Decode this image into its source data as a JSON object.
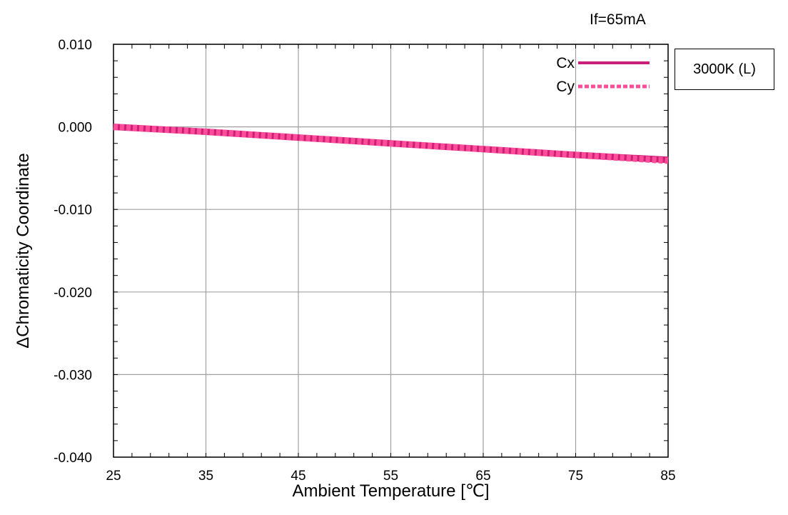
{
  "condition_label": "If=65mA",
  "tag_label": "3000K (L)",
  "colors": {
    "cx": "#cc1f78",
    "cy": "#ff4d9a",
    "grid": "#a0a0a0"
  },
  "chart_data": {
    "type": "line",
    "title": "",
    "xlabel": "Ambient Temperature [℃]",
    "ylabel": "ΔChromaticity Coordinate",
    "xlim": [
      25,
      85
    ],
    "ylim": [
      -0.04,
      0.01
    ],
    "xticks": [
      25,
      35,
      45,
      55,
      65,
      75,
      85
    ],
    "xtick_labels": [
      "25",
      "35",
      "45",
      "55",
      "65",
      "75",
      "85"
    ],
    "yticks": [
      0.01,
      0.0,
      -0.01,
      -0.02,
      -0.03,
      -0.04
    ],
    "ytick_labels": [
      "0.010",
      "0.000",
      "-0.010",
      "-0.020",
      "-0.030",
      "-0.040"
    ],
    "grid": true,
    "legend_position": "top-right",
    "series": [
      {
        "name": "Cx",
        "style": "solid",
        "x": [
          25,
          35,
          45,
          55,
          65,
          75,
          85
        ],
        "y": [
          0.0,
          -0.0006,
          -0.0013,
          -0.002,
          -0.0027,
          -0.0034,
          -0.004
        ]
      },
      {
        "name": "Cy",
        "style": "dotted",
        "x": [
          25,
          35,
          45,
          55,
          65,
          75,
          85
        ],
        "y": [
          0.0,
          -0.0006,
          -0.0013,
          -0.002,
          -0.0027,
          -0.0034,
          -0.0041
        ]
      }
    ]
  }
}
